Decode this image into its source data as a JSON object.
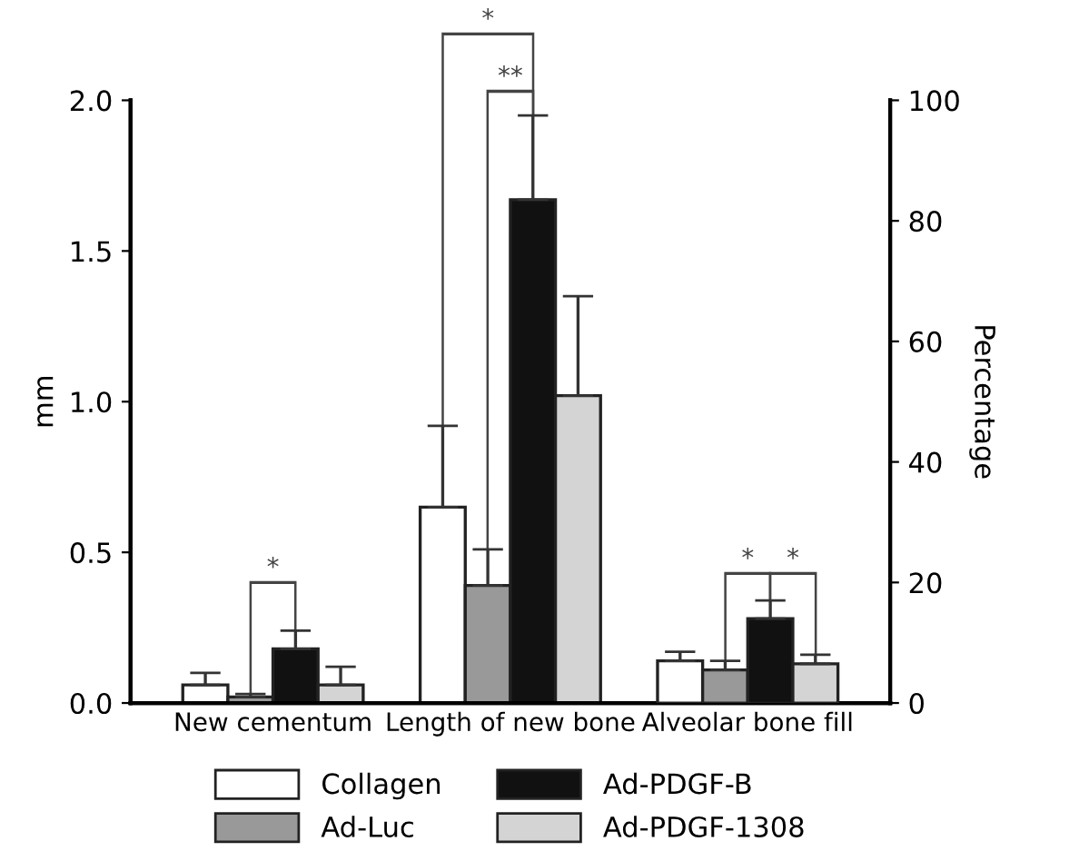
{
  "chart_data": {
    "type": "bar",
    "ylabel": "mm",
    "y2label": "Percentage",
    "categories": [
      "New cementum",
      "Length of new bone",
      "Alveolar bone fill"
    ],
    "series": [
      {
        "name": "Collagen",
        "color": "#ffffff",
        "values": [
          0.06,
          0.65,
          null
        ],
        "errors": [
          [
            0.06,
            0.1
          ],
          [
            0.65,
            0.92
          ],
          null
        ]
      },
      {
        "name": "Ad-Luc",
        "color": "#999999",
        "values": [
          0.02,
          0.39,
          null
        ],
        "errors": [
          [
            0.02,
            0.03
          ],
          [
            0.39,
            0.51
          ],
          null
        ]
      },
      {
        "name": "Ad-PDGF-B",
        "color": "#111111",
        "values": [
          0.18,
          1.67,
          null
        ],
        "errors": [
          [
            0.18,
            0.24
          ],
          [
            1.67,
            1.95
          ],
          null
        ]
      },
      {
        "name": "Ad-PDGF-1308",
        "color": "#d4d4d4",
        "values": [
          0.06,
          1.02,
          null
        ],
        "errors": [
          [
            0.06,
            0.12
          ],
          [
            1.02,
            1.35
          ],
          null
        ]
      },
      {
        "axis": "y2",
        "color": "#ffffff",
        "values": [
          null,
          null,
          7
        ],
        "errors": [
          null,
          null,
          [
            7,
            8.5
          ]
        ]
      },
      {
        "axis": "y2",
        "color": "#999999",
        "values": [
          null,
          null,
          5.5
        ],
        "errors": [
          null,
          null,
          [
            5.5,
            7
          ]
        ]
      },
      {
        "axis": "y2",
        "color": "#111111",
        "values": [
          null,
          null,
          14
        ],
        "errors": [
          null,
          null,
          [
            14,
            17
          ]
        ]
      },
      {
        "axis": "y2",
        "color": "#d4d4d4",
        "values": [
          null,
          null,
          6.5
        ],
        "errors": [
          null,
          null,
          [
            6.5,
            8
          ]
        ]
      }
    ],
    "ylim": [
      0,
      2.0
    ],
    "yticks": [
      {
        "value": 0,
        "label": "0.0"
      },
      {
        "value": 0.5,
        "label": "0.5"
      },
      {
        "value": 1.0,
        "label": "1.0"
      },
      {
        "value": 1.5,
        "label": "1.5"
      },
      {
        "value": 2.0,
        "label": "2.0"
      }
    ],
    "y2lim": [
      0,
      100
    ],
    "y2ticks": [
      0,
      20,
      40,
      60,
      80,
      100
    ],
    "annotations": [
      "*",
      "*",
      "**",
      "*",
      "*"
    ],
    "legend": "bottom",
    "grid": false
  }
}
